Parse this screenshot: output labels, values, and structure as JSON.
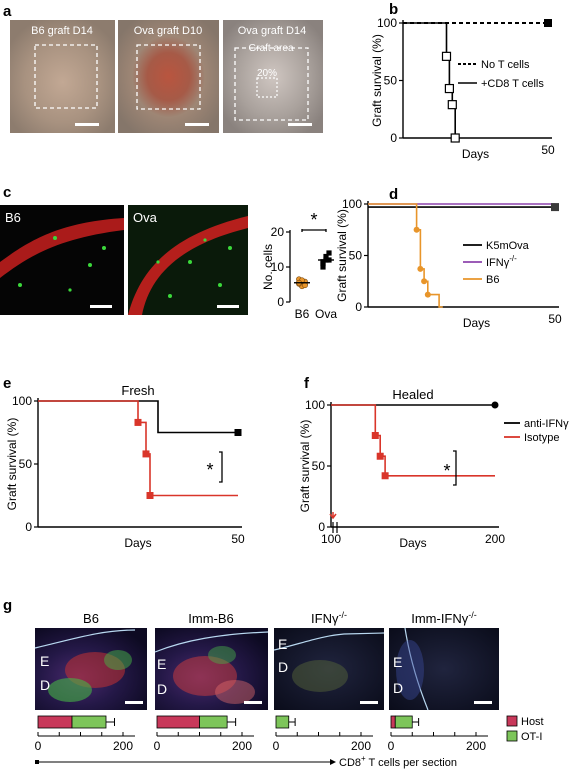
{
  "panels": {
    "a": {
      "letter": "a",
      "images": [
        {
          "label": "B6 graft D14"
        },
        {
          "label": "Ova graft D10"
        },
        {
          "label": "Ova graft D14",
          "area_label": "Graft area",
          "pct_label": "20%"
        }
      ]
    },
    "c_images": {
      "letter": "c",
      "labels": [
        "B6",
        "Ova"
      ]
    },
    "g": {
      "letter": "g",
      "images": [
        {
          "label": "B6"
        },
        {
          "label": "Imm-B6"
        },
        {
          "label": "IFNγ-/-",
          "base": "IFNγ",
          "sup": "-/-"
        },
        {
          "label": "Imm-IFNγ-/-",
          "base": "Imm-IFNγ",
          "sup": "-/-"
        }
      ],
      "layer_labels": [
        "E",
        "D"
      ]
    }
  },
  "colors": {
    "red": "#d9352a",
    "orange": "#e8952a",
    "purple": "#8e44ad",
    "black": "#000000",
    "host": "#c8385a",
    "oti": "#7dc55a"
  },
  "chart_data": [
    {
      "panel": "b",
      "type": "line",
      "ylabel": "Graft survival (%)",
      "xlabel": "Days",
      "xticks": [
        50
      ],
      "yticks": [
        0,
        50,
        100
      ],
      "xlim": [
        0,
        50
      ],
      "ylim": [
        0,
        100
      ],
      "series": [
        {
          "name": "No T cells",
          "style": "dotted",
          "points": [
            [
              0,
              100
            ],
            [
              50,
              100
            ]
          ]
        },
        {
          "name": "+CD8 T cells",
          "style": "solid",
          "points": [
            [
              0,
              100
            ],
            [
              15,
              100
            ],
            [
              15,
              71
            ],
            [
              16,
              71
            ],
            [
              16,
              43
            ],
            [
              17,
              43
            ],
            [
              17,
              29
            ],
            [
              18,
              29
            ],
            [
              18,
              0
            ],
            [
              19,
              0
            ]
          ]
        }
      ]
    },
    {
      "panel": "c",
      "type": "scatter",
      "ylabel": "No. cells",
      "yticks": [
        0,
        10,
        20
      ],
      "ylim": [
        0,
        20
      ],
      "categories": [
        "B6",
        "Ova"
      ],
      "significance": "*",
      "series": [
        {
          "name": "B6",
          "values": [
            5.5,
            6,
            5,
            6.5,
            4.5,
            5.8,
            5.2,
            6.2,
            4.8,
            5.5
          ],
          "mean": 5.5
        },
        {
          "name": "Ova",
          "values": [
            11,
            12,
            14,
            10,
            13,
            12,
            11.5
          ],
          "mean": 12
        }
      ]
    },
    {
      "panel": "d",
      "type": "line",
      "ylabel": "Graft survival (%)",
      "xlabel": "Days",
      "xticks": [
        50
      ],
      "yticks": [
        0,
        50,
        100
      ],
      "xlim": [
        0,
        50
      ],
      "ylim": [
        0,
        100
      ],
      "series": [
        {
          "name": "K5mOva",
          "color": "#000000",
          "points": [
            [
              0,
              97
            ],
            [
              50,
              97
            ]
          ]
        },
        {
          "name": "IFNγ-/-",
          "base": "IFNγ",
          "sup": "-/-",
          "color": "#8e44ad",
          "points": [
            [
              0,
              100
            ],
            [
              50,
              100
            ]
          ]
        },
        {
          "name": "B6",
          "color": "#e8952a",
          "points": [
            [
              0,
              100
            ],
            [
              13,
              100
            ],
            [
              13,
              75
            ],
            [
              14,
              75
            ],
            [
              14,
              37
            ],
            [
              15,
              37
            ],
            [
              15,
              25
            ],
            [
              16,
              25
            ],
            [
              16,
              12
            ],
            [
              19,
              12
            ],
            [
              19,
              0
            ],
            [
              20,
              0
            ]
          ]
        }
      ]
    },
    {
      "panel": "e",
      "type": "line",
      "title": "Fresh",
      "ylabel": "Graft survival (%)",
      "xlabel": "Days",
      "xticks": [
        50
      ],
      "yticks": [
        0,
        50,
        100
      ],
      "xlim": [
        0,
        50
      ],
      "ylim": [
        0,
        100
      ],
      "significance": "*",
      "series": [
        {
          "name": "anti-IFNγ",
          "color": "#000000",
          "points": [
            [
              0,
              100
            ],
            [
              30,
              100
            ],
            [
              30,
              75
            ],
            [
              50,
              75
            ]
          ]
        },
        {
          "name": "Isotype",
          "color": "#d9352a",
          "points": [
            [
              0,
              100
            ],
            [
              25,
              100
            ],
            [
              25,
              83
            ],
            [
              27,
              83
            ],
            [
              27,
              58
            ],
            [
              28,
              58
            ],
            [
              28,
              25
            ],
            [
              50,
              25
            ]
          ]
        }
      ]
    },
    {
      "panel": "f",
      "type": "line",
      "title": "Healed",
      "ylabel": "Graft survival (%)",
      "xlabel": "Days",
      "xticks": [
        100,
        200
      ],
      "yticks": [
        0,
        50,
        100
      ],
      "xlim": [
        100,
        200
      ],
      "ylim": [
        0,
        100
      ],
      "significance": "*",
      "legend": [
        "anti-IFNγ",
        "Isotype"
      ],
      "series": [
        {
          "name": "anti-IFNγ",
          "color": "#000000",
          "points": [
            [
              100,
              100
            ],
            [
              200,
              100
            ]
          ]
        },
        {
          "name": "Isotype",
          "color": "#d9352a",
          "points": [
            [
              100,
              100
            ],
            [
              127,
              100
            ],
            [
              127,
              75
            ],
            [
              130,
              75
            ],
            [
              130,
              58
            ],
            [
              133,
              58
            ],
            [
              133,
              42
            ],
            [
              200,
              42
            ]
          ]
        }
      ]
    },
    {
      "panel": "g",
      "type": "bar",
      "orientation": "horizontal",
      "stacked": true,
      "xlabel": "CD8+ T cells per section",
      "xlabel_base": "CD8",
      "xlabel_sup": "+",
      "xlabel_rest": " T cells per section",
      "xticks": [
        0,
        200
      ],
      "xlim": [
        0,
        200
      ],
      "legend": [
        "Host",
        "OT-I"
      ],
      "categories": [
        "B6",
        "Imm-B6",
        "IFNγ-/-",
        "Imm-IFNγ-/-"
      ],
      "series": [
        {
          "name": "Host",
          "values": [
            80,
            100,
            0,
            10
          ],
          "errors": [
            0,
            0,
            0,
            5
          ]
        },
        {
          "name": "OT-I",
          "values": [
            80,
            65,
            30,
            40
          ],
          "errors": [
            20,
            20,
            15,
            15
          ]
        }
      ]
    }
  ]
}
